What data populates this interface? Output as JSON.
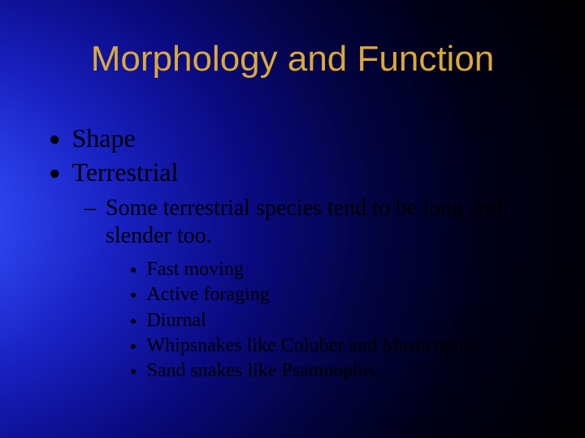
{
  "slide": {
    "title": "Morphology and Function",
    "background": {
      "gradient_type": "radial",
      "inner_color": "#3a5aff",
      "mid_color": "#0a0a80",
      "outer_color": "#000000"
    },
    "title_color": "#d9a93c",
    "text_color": "#000000",
    "title_font": "Arial",
    "body_font": "Times New Roman",
    "level1": [
      {
        "text": "Shape"
      },
      {
        "text": "Terrestrial"
      }
    ],
    "level2": [
      {
        "text": "Some terrestrial species tend to be long and slender too."
      }
    ],
    "level3": [
      {
        "text": "Fast moving"
      },
      {
        "text": "Active foraging"
      },
      {
        "text": "Diurnal"
      },
      {
        "text": "Whipsnakes like Coluber and Masticophis."
      },
      {
        "text": "Sand snakes like Psamnophis."
      }
    ],
    "bullets": {
      "l1_symbol": "●",
      "l2_symbol": "–",
      "l3_symbol": "●"
    },
    "fontsizes": {
      "title": 44,
      "l1": 32,
      "l2": 28,
      "l3": 24
    }
  }
}
